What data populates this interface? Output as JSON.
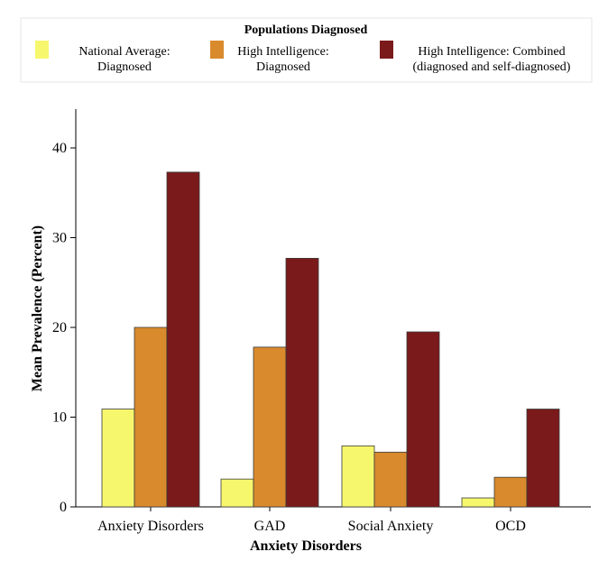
{
  "chart_data": {
    "type": "bar",
    "title": "",
    "legend": {
      "title": "Populations Diagnosed",
      "placement": "top",
      "entries": [
        {
          "series": 0,
          "lines": [
            "National Average:",
            "Diagnosed"
          ]
        },
        {
          "series": 1,
          "lines": [
            "High Intelligence:",
            "Diagnosed"
          ]
        },
        {
          "series": 2,
          "lines": [
            "High Intelligence: Combined",
            "(diagnosed and self-diagnosed)"
          ]
        }
      ]
    },
    "xlabel": "Anxiety Disorders",
    "ylabel": "Mean Prevalence (Percent)",
    "ylim": [
      0,
      45
    ],
    "yticks": [
      0,
      10,
      20,
      30,
      40
    ],
    "grid": false,
    "categories": [
      "Anxiety Disorders",
      "GAD",
      "Social Anxiety",
      "OCD"
    ],
    "series": [
      {
        "name": "National Average: Diagnosed",
        "color": "#f7f76e",
        "values": [
          10.9,
          3.1,
          6.8,
          1.0
        ]
      },
      {
        "name": "High Intelligence: Diagnosed",
        "color": "#d98a2c",
        "values": [
          20.0,
          17.8,
          6.1,
          3.3
        ]
      },
      {
        "name": "High Intelligence: Combined (diagnosed and self-diagnosed)",
        "color": "#7a1a1b",
        "values": [
          37.3,
          27.7,
          19.5,
          10.9
        ]
      }
    ]
  }
}
